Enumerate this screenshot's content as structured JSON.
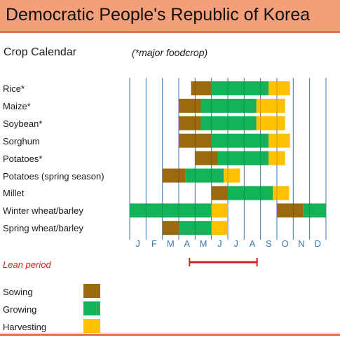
{
  "header": {
    "title": "Democratic People's Republic of Korea",
    "subtitle": "Crop Calendar",
    "note": "(*major foodcrop)"
  },
  "colors": {
    "sowing": "#9a6a10",
    "growing": "#13b35a",
    "harvesting": "#ffc000",
    "lean": "#d02020",
    "gridline": "#3a78b8",
    "month_text": "#3a78b8",
    "header_bg": "#f3a07a",
    "rule": "#e0733f"
  },
  "chart_data": {
    "type": "table",
    "months": [
      "J",
      "F",
      "M",
      "A",
      "M",
      "J",
      "J",
      "A",
      "S",
      "O",
      "N",
      "D"
    ],
    "crops": [
      {
        "name": "Rice*",
        "segments": [
          {
            "phase": "sowing",
            "start": 3.75,
            "end": 5.0
          },
          {
            "phase": "growing",
            "start": 5.0,
            "end": 8.5
          },
          {
            "phase": "harvesting",
            "start": 8.5,
            "end": 9.8
          }
        ]
      },
      {
        "name": "Maize*",
        "segments": [
          {
            "phase": "sowing",
            "start": 3.0,
            "end": 4.35
          },
          {
            "phase": "growing",
            "start": 4.35,
            "end": 7.75
          },
          {
            "phase": "harvesting",
            "start": 7.75,
            "end": 9.5
          }
        ]
      },
      {
        "name": "Soybean*",
        "segments": [
          {
            "phase": "sowing",
            "start": 3.0,
            "end": 4.35
          },
          {
            "phase": "growing",
            "start": 4.35,
            "end": 7.75
          },
          {
            "phase": "harvesting",
            "start": 7.75,
            "end": 9.5
          }
        ]
      },
      {
        "name": "Sorghum",
        "segments": [
          {
            "phase": "sowing",
            "start": 3.0,
            "end": 5.0
          },
          {
            "phase": "growing",
            "start": 5.0,
            "end": 8.5
          },
          {
            "phase": "harvesting",
            "start": 8.5,
            "end": 9.8
          }
        ]
      },
      {
        "name": "Potatoes*",
        "segments": [
          {
            "phase": "sowing",
            "start": 4.0,
            "end": 5.4
          },
          {
            "phase": "growing",
            "start": 5.4,
            "end": 8.5
          },
          {
            "phase": "harvesting",
            "start": 8.5,
            "end": 9.5
          }
        ]
      },
      {
        "name": "Potatoes (spring season)",
        "segments": [
          {
            "phase": "sowing",
            "start": 2.0,
            "end": 3.4
          },
          {
            "phase": "growing",
            "start": 3.4,
            "end": 5.75
          },
          {
            "phase": "harvesting",
            "start": 5.75,
            "end": 6.75
          }
        ]
      },
      {
        "name": "Millet",
        "segments": [
          {
            "phase": "sowing",
            "start": 5.0,
            "end": 6.0
          },
          {
            "phase": "growing",
            "start": 6.0,
            "end": 8.75
          },
          {
            "phase": "harvesting",
            "start": 8.75,
            "end": 9.75
          }
        ]
      },
      {
        "name": "Winter wheat/barley",
        "segments": [
          {
            "phase": "growing",
            "start": 0.0,
            "end": 5.0
          },
          {
            "phase": "harvesting",
            "start": 5.0,
            "end": 6.0
          },
          {
            "phase": "sowing",
            "start": 9.0,
            "end": 10.6
          },
          {
            "phase": "growing",
            "start": 10.6,
            "end": 12.0
          }
        ]
      },
      {
        "name": "Spring wheat/barley",
        "segments": [
          {
            "phase": "sowing",
            "start": 2.0,
            "end": 3.0
          },
          {
            "phase": "growing",
            "start": 3.0,
            "end": 5.0
          },
          {
            "phase": "harvesting",
            "start": 5.0,
            "end": 6.0
          }
        ]
      }
    ],
    "lean_period": {
      "label": "Lean period",
      "start": 4.0,
      "end": 8.0
    },
    "legend": [
      {
        "key": "sowing",
        "label": "Sowing"
      },
      {
        "key": "growing",
        "label": "Growing"
      },
      {
        "key": "harvesting",
        "label": "Harvesting"
      }
    ]
  }
}
